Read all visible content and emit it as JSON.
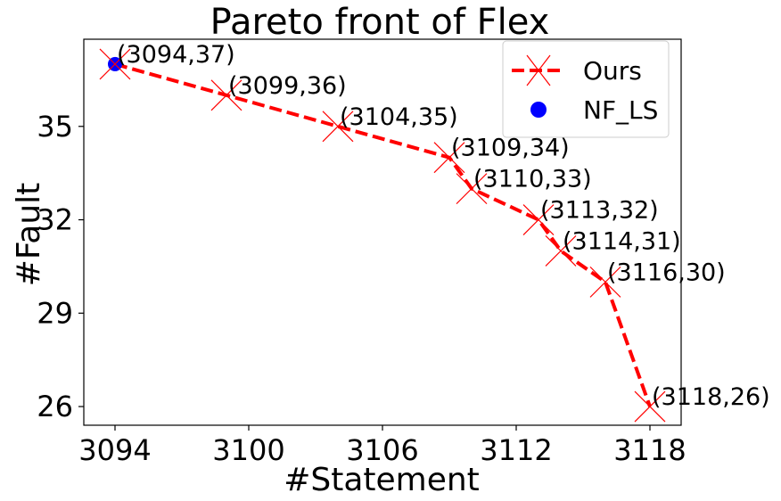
{
  "chart_data": {
    "type": "line",
    "title": "Pareto front of Flex",
    "xlabel": "#Statement",
    "ylabel": "#Fault",
    "xlim": [
      3092.6,
      3119.4
    ],
    "ylim": [
      25.4,
      37.8
    ],
    "xticks": [
      3094,
      3100,
      3106,
      3112,
      3118
    ],
    "yticks": [
      26,
      29,
      32,
      35
    ],
    "grid": false,
    "legend_position": "top-right",
    "colors": {
      "ours": "#ff0000",
      "nf_ls": "#0000ff"
    },
    "series": [
      {
        "name": "Ours",
        "style": "dashed line with x markers",
        "points": [
          {
            "x": 3094,
            "y": 37,
            "label": "(3094,37)"
          },
          {
            "x": 3099,
            "y": 36,
            "label": "(3099,36)"
          },
          {
            "x": 3104,
            "y": 35,
            "label": "(3104,35)"
          },
          {
            "x": 3109,
            "y": 34,
            "label": "(3109,34)"
          },
          {
            "x": 3110,
            "y": 33,
            "label": "(3110,33)"
          },
          {
            "x": 3113,
            "y": 32,
            "label": "(3113,32)"
          },
          {
            "x": 3114,
            "y": 31,
            "label": "(3114,31)"
          },
          {
            "x": 3116,
            "y": 30,
            "label": "(3116,30)"
          },
          {
            "x": 3118,
            "y": 26,
            "label": "(3118,26)"
          }
        ]
      },
      {
        "name": "NF_LS",
        "style": "filled circle marker",
        "points": [
          {
            "x": 3094,
            "y": 37
          }
        ]
      }
    ]
  }
}
